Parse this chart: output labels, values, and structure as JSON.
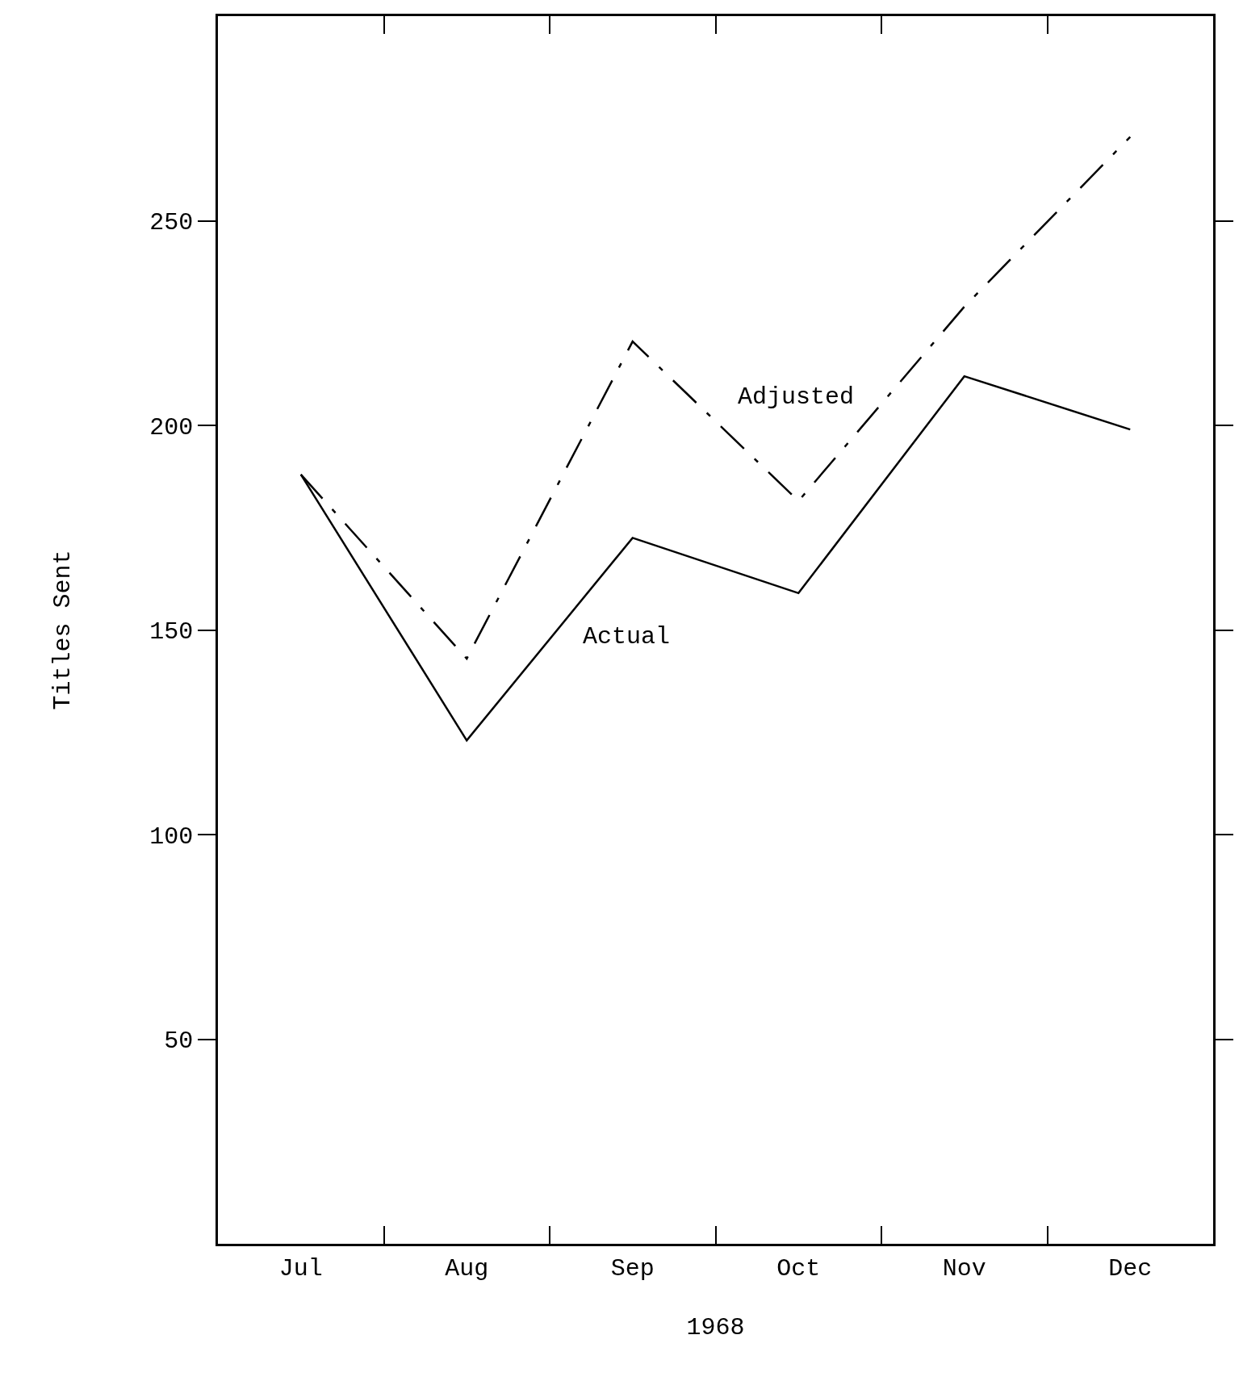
{
  "chart_data": {
    "type": "line",
    "xlabel": "1968",
    "ylabel": "Titles Sent",
    "categories": [
      "Jul",
      "Aug",
      "Sep",
      "Oct",
      "Nov",
      "Dec"
    ],
    "series": [
      {
        "name": "Actual",
        "color": "#000000",
        "line_style": "solid",
        "values": [
          188,
          123,
          172.5,
          159,
          212,
          199
        ]
      },
      {
        "name": "Adjusted",
        "color": "#000000",
        "line_style": "dashed",
        "values": [
          188,
          143,
          220.5,
          181.5,
          229,
          270.5
        ]
      }
    ],
    "ylim": [
      0,
      300
    ],
    "yticks": [
      50,
      100,
      150,
      200,
      250
    ],
    "grid": false,
    "legend": false,
    "marker": "none"
  }
}
